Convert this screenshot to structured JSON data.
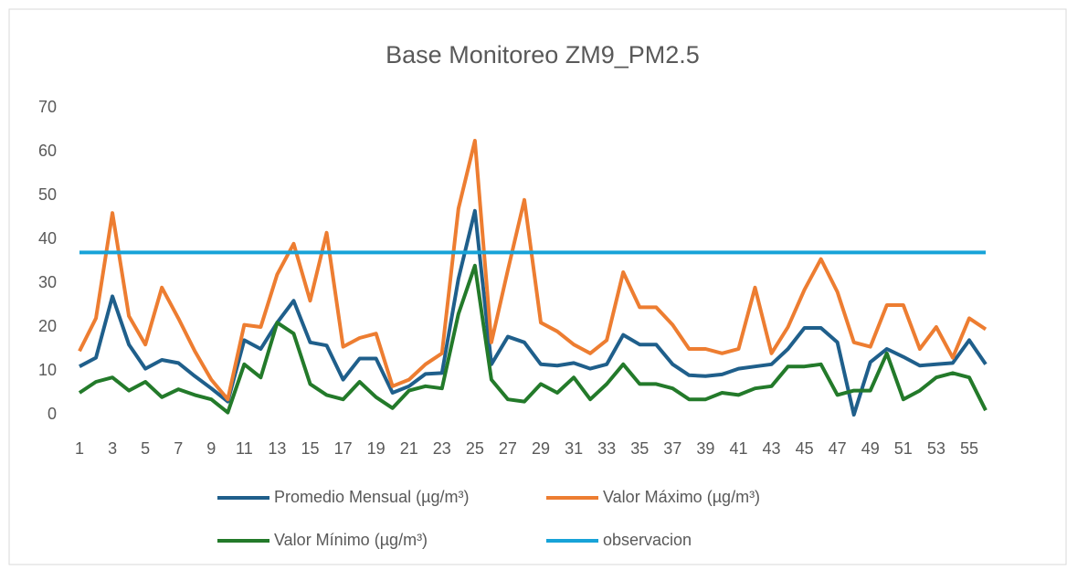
{
  "chart_data": {
    "type": "line",
    "title": "Base Monitoreo ZM9_PM2.5",
    "categories": [
      1,
      null,
      3,
      null,
      5,
      null,
      7,
      null,
      9,
      null,
      11,
      null,
      13,
      null,
      15,
      null,
      17,
      null,
      19,
      null,
      21,
      null,
      23,
      null,
      25,
      null,
      27,
      null,
      29,
      null,
      31,
      null,
      33,
      null,
      35,
      null,
      37,
      null,
      39,
      null,
      41,
      null,
      43,
      null,
      45,
      null,
      47,
      null,
      49,
      null,
      51,
      null,
      53,
      null,
      55,
      null
    ],
    "series": [
      {
        "name": "Promedio Mensual (µg/m³)",
        "color": "#1f5f8b",
        "values": [
          11,
          13,
          27,
          16,
          10.5,
          12.5,
          11.8,
          8.8,
          6,
          3,
          17,
          15,
          21,
          26,
          16.5,
          15.8,
          8,
          12.8,
          12.8,
          5,
          6.5,
          9.3,
          9.5,
          31,
          46.5,
          11.5,
          17.8,
          16.5,
          11.5,
          11.2,
          11.8,
          10.5,
          11.5,
          18.2,
          16,
          16,
          11.5,
          9,
          8.8,
          9.2,
          10.5,
          11,
          11.5,
          15,
          19.8,
          19.8,
          16.5,
          0,
          12,
          15,
          13.2,
          11.2,
          11.5,
          11.8,
          17,
          11.5
        ]
      },
      {
        "name": "Valor Máximo (µg/m³)",
        "color": "#ed7d31",
        "values": [
          14.5,
          22,
          46,
          22.5,
          16,
          29,
          22,
          14.5,
          8,
          3.5,
          20.5,
          20,
          32,
          39,
          26,
          41.5,
          15.5,
          17.5,
          18.5,
          6.5,
          8,
          11.5,
          14,
          47,
          62.5,
          16.5,
          33,
          49,
          21,
          19,
          16,
          14,
          17,
          32.5,
          24.5,
          24.5,
          20.5,
          15,
          15,
          14,
          15,
          29,
          14,
          20,
          28.5,
          35.5,
          28,
          16.5,
          15.5,
          25,
          25,
          15,
          20,
          13,
          22,
          19.5
        ]
      },
      {
        "name": "Valor Mínimo (µg/m³)",
        "color": "#237a2a",
        "values": [
          5,
          7.5,
          8.5,
          5.5,
          7.5,
          4,
          5.8,
          4.5,
          3.5,
          0.5,
          11.5,
          8.5,
          21,
          18.5,
          7,
          4.5,
          3.5,
          7.5,
          4,
          1.5,
          5.5,
          6.5,
          6,
          23,
          34,
          8,
          3.5,
          3,
          7,
          5,
          8.5,
          3.5,
          7,
          11.5,
          7,
          7,
          6,
          3.5,
          3.5,
          5,
          4.5,
          6,
          6.5,
          11,
          11,
          11.5,
          4.5,
          5.5,
          5.5,
          14,
          3.5,
          5.5,
          8.5,
          9.5,
          8.5,
          1
        ]
      },
      {
        "name": "observacion",
        "color": "#17a3d8",
        "values": [
          37,
          37,
          37,
          37,
          37,
          37,
          37,
          37,
          37,
          37,
          37,
          37,
          37,
          37,
          37,
          37,
          37,
          37,
          37,
          37,
          37,
          37,
          37,
          37,
          37,
          37,
          37,
          37,
          37,
          37,
          37,
          37,
          37,
          37,
          37,
          37,
          37,
          37,
          37,
          37,
          37,
          37,
          37,
          37,
          37,
          37,
          37,
          37,
          37,
          37,
          37,
          37,
          37,
          37,
          37,
          37
        ]
      }
    ],
    "ylim": [
      0,
      70
    ],
    "yticks": [
      0,
      10,
      20,
      30,
      40,
      50,
      60,
      70
    ],
    "grid": false
  }
}
